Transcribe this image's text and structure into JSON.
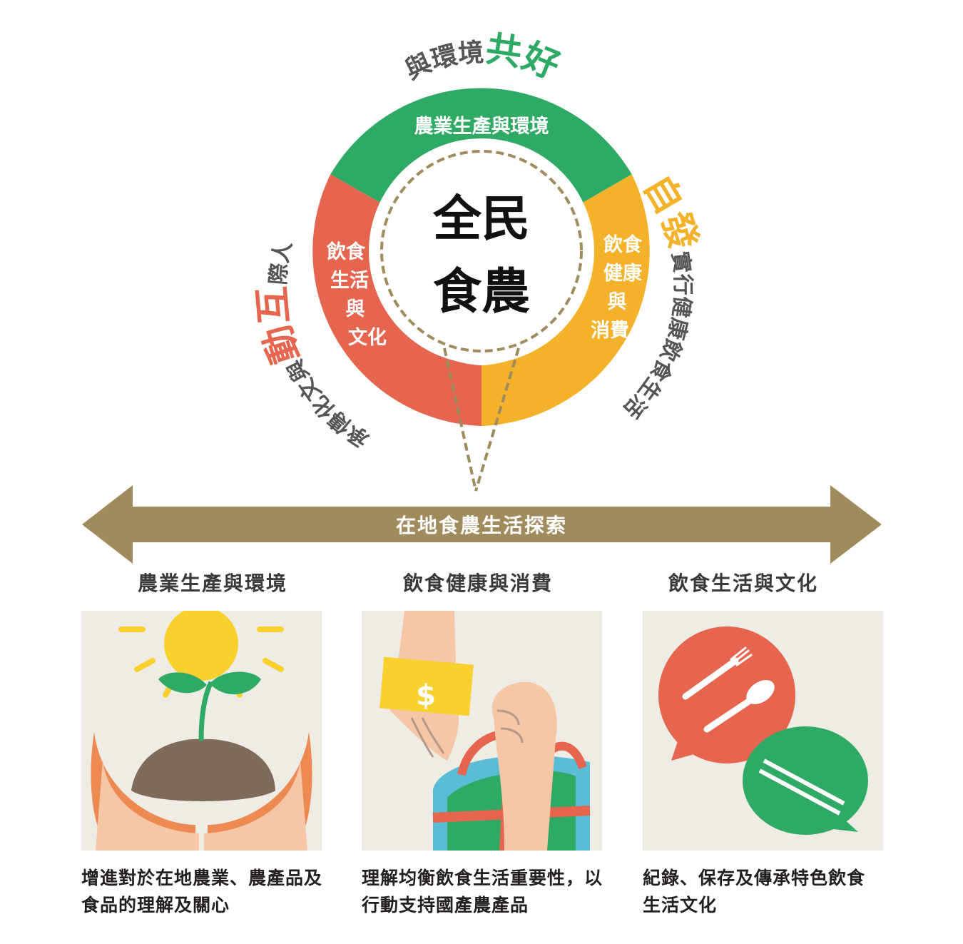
{
  "center": {
    "line1": "全民",
    "line2": "食農"
  },
  "ring": {
    "top_label": "農業生產與環境",
    "right_label": [
      "飲食",
      "健康",
      "與",
      "消費"
    ],
    "left_label": [
      "飲食",
      "生活",
      "與",
      "文化"
    ]
  },
  "outer": {
    "top_plain": "與環境",
    "top_em": "共好",
    "right_em": "自發",
    "right_plain": "實行健康飲食生活",
    "left_plain_a": "承傳化文與",
    "left_em": "動互",
    "left_plain_b": "際人"
  },
  "arrow": {
    "label": "在地食農生活探索"
  },
  "categories": [
    "農業生產與環境",
    "飲食健康與消費",
    "飲食生活與文化"
  ],
  "descriptions": [
    "增進對於在地農業、農產品及食品的理解及關心",
    "理解均衡飲食生活重要性，以行動支持國產農產品",
    "紀錄、保存及傳承特色飲食生活文化"
  ],
  "icons": {
    "panel1": "hands-seedling-sun-icon",
    "panel2": "hand-money-shopping-bag-icon",
    "panel3": "speech-bubbles-utensils-icon",
    "dollar": "$"
  },
  "colors": {
    "green": "#2eaa65",
    "orange": "#f4b22b",
    "red": "#e5654f",
    "olive": "#a08b5c",
    "panel_bg": "#efece6"
  }
}
